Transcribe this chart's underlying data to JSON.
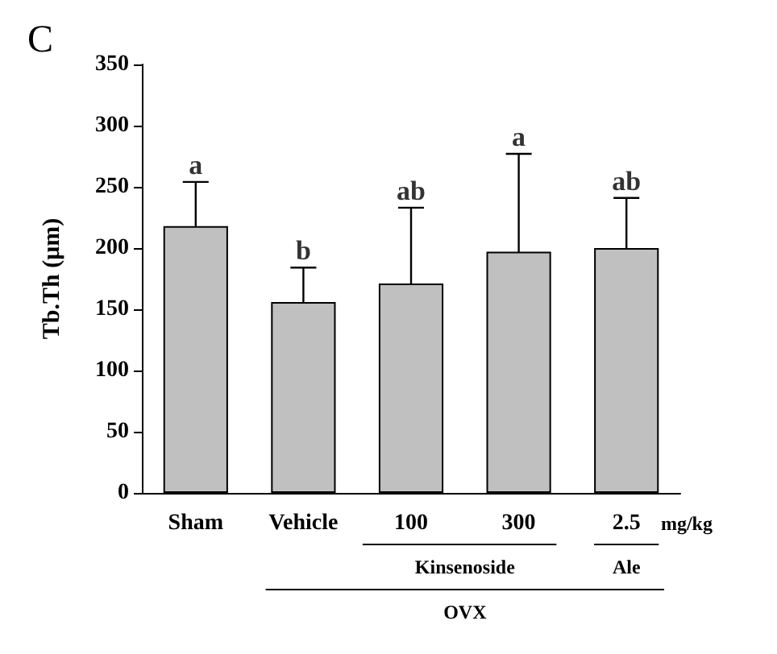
{
  "chart_data": {
    "type": "bar",
    "title": "C",
    "ylabel": "Tb.Th (μm)",
    "categories": [
      "Sham",
      "Vehicle",
      "100",
      "300",
      "2.5"
    ],
    "values": [
      218,
      156,
      171,
      197,
      200
    ],
    "errors": [
      36,
      28,
      62,
      80,
      41
    ],
    "color": "#c0c0c0",
    "ylim": [
      0,
      350
    ],
    "yticks": [
      0,
      50,
      100,
      150,
      200,
      250,
      300,
      350
    ],
    "grid": false,
    "annotations": [
      {
        "text": "a",
        "x": "Sham",
        "y": 254
      },
      {
        "text": "b",
        "x": "Vehicle",
        "y": 184
      },
      {
        "text": "ab",
        "x": "100",
        "y": 233
      },
      {
        "text": "a",
        "x": "300",
        "y": 277
      },
      {
        "text": "ab",
        "x": "2.5",
        "y": 241
      },
      "mg/kg",
      "Kinsenoside",
      "Ale",
      "OVX"
    ]
  }
}
